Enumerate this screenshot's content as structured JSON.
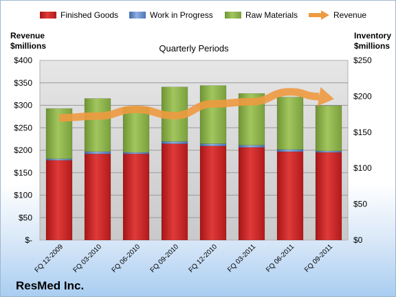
{
  "company": "ResMed Inc.",
  "chart_data": {
    "type": "bar",
    "stacked": true,
    "title": "Quarterly Periods",
    "categories": [
      "FQ 12-2009",
      "FQ 03-2010",
      "FQ 06-2010",
      "FQ 09-2010",
      "FQ 12-2010",
      "FQ 03-2011",
      "FQ 06-2011",
      "FQ 09-2011"
    ],
    "series": [
      {
        "name": "Finished Goods",
        "axis": "right",
        "color": "#cc2222",
        "values": [
          111,
          120,
          120,
          134,
          131,
          129,
          123,
          122
        ]
      },
      {
        "name": "Work in Progress",
        "axis": "right",
        "color": "#5b86c8",
        "values": [
          2,
          3,
          2,
          3,
          3,
          3,
          3,
          2
        ]
      },
      {
        "name": "Raw Materials",
        "axis": "right",
        "color": "#8cb24a",
        "values": [
          70,
          74,
          63,
          76,
          81,
          72,
          73,
          63
        ]
      },
      {
        "name": "Revenue",
        "type": "line",
        "axis": "left",
        "color": "#ee9a40",
        "values": [
          272,
          276,
          291,
          277,
          303,
          308,
          330,
          316
        ]
      }
    ],
    "left_axis": {
      "label_line1": "Revenue",
      "label_line2": "$millions",
      "min": 0,
      "max": 400,
      "step": 50,
      "ticks": [
        "$-",
        "$50",
        "$100",
        "$150",
        "$200",
        "$250",
        "$300",
        "$350",
        "$400"
      ]
    },
    "right_axis": {
      "label_line1": "Inventory",
      "label_line2": "$millions",
      "min": 0,
      "max": 250,
      "step": 50,
      "ticks": [
        "$0",
        "$50",
        "$100",
        "$150",
        "$200",
        "$250"
      ]
    },
    "legend_position": "top",
    "grid": true
  }
}
